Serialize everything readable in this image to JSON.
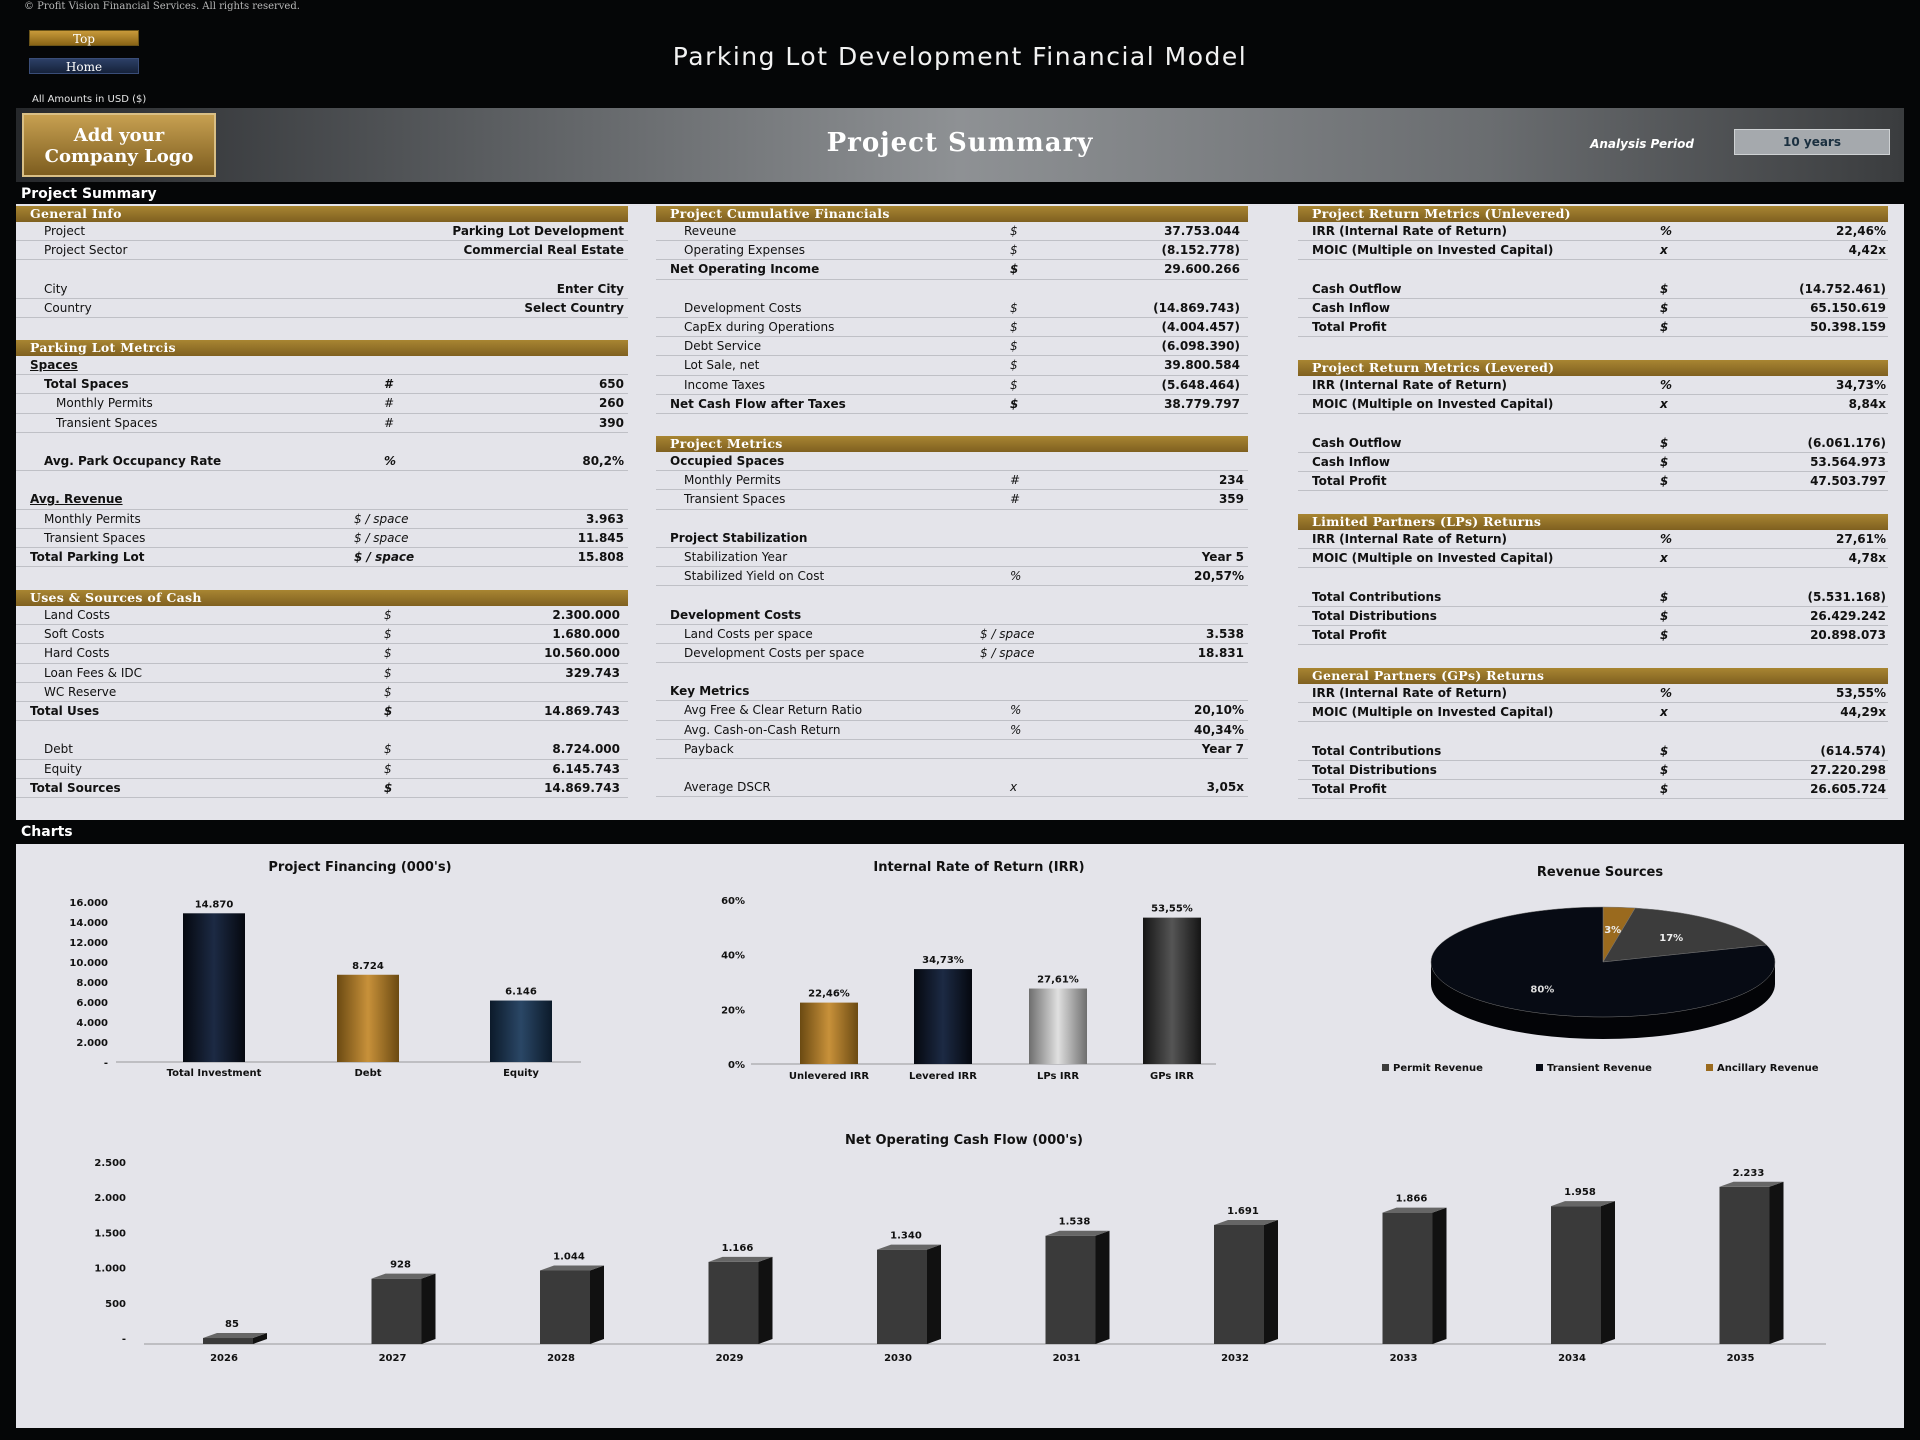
{
  "copyright": "© Profit Vision Financial Services. All rights reserved.",
  "nav": {
    "top": "Top",
    "home": "Home"
  },
  "title": "Parking Lot Development Financial Model",
  "amounts_label": "All Amounts in  USD ($)",
  "banner": {
    "logo_line1": "Add your",
    "logo_line2": "Company Logo",
    "title": "Project Summary",
    "analysis_label": "Analysis Period",
    "analysis_value": "10 years"
  },
  "sections": {
    "summary": "Project Summary",
    "charts": "Charts"
  },
  "panels": {
    "general": {
      "title": "General Info",
      "rows": [
        {
          "label": "Project",
          "value": "Parking Lot Development"
        },
        {
          "label": "Project Sector",
          "value": "Commercial Real Estate"
        },
        {
          "label": "",
          "value": ""
        },
        {
          "label": "City",
          "value": "Enter City"
        },
        {
          "label": "Country",
          "value": "Select Country"
        }
      ]
    },
    "parking": {
      "title": "Parking Lot Metrcis",
      "rows": [
        {
          "label": "Spaces",
          "unit": "",
          "value": ""
        },
        {
          "label": "Total Spaces",
          "unit": "#",
          "value": "650"
        },
        {
          "label": "Monthly Permits",
          "unit": "#",
          "value": "260"
        },
        {
          "label": "Transient Spaces",
          "unit": "#",
          "value": "390"
        },
        {
          "label": "",
          "unit": "",
          "value": ""
        },
        {
          "label": "Avg. Park Occupancy Rate",
          "unit": "%",
          "value": "80,2%"
        },
        {
          "label": "",
          "unit": "",
          "value": ""
        },
        {
          "label": "Avg. Revenue",
          "unit": "",
          "value": ""
        },
        {
          "label": "Monthly Permits",
          "unit": "$ / space",
          "value": "3.963"
        },
        {
          "label": "Transient Spaces",
          "unit": "$ / space",
          "value": "11.845"
        },
        {
          "label": "Total Parking Lot",
          "unit": "$ / space",
          "value": "15.808"
        }
      ]
    },
    "uses": {
      "title": "Uses & Sources of Cash",
      "rows": [
        {
          "label": "Land Costs",
          "unit": "$",
          "value": "2.300.000"
        },
        {
          "label": "Soft Costs",
          "unit": "$",
          "value": "1.680.000"
        },
        {
          "label": "Hard Costs",
          "unit": "$",
          "value": "10.560.000"
        },
        {
          "label": "Loan Fees & IDC",
          "unit": "$",
          "value": "329.743"
        },
        {
          "label": "WC Reserve",
          "unit": "$",
          "value": ""
        },
        {
          "label": "Total Uses",
          "unit": "$",
          "value": "14.869.743"
        },
        {
          "label": "",
          "unit": "",
          "value": ""
        },
        {
          "label": "Debt",
          "unit": "$",
          "value": "8.724.000"
        },
        {
          "label": "Equity",
          "unit": "$",
          "value": "6.145.743"
        },
        {
          "label": "Total Sources",
          "unit": "$",
          "value": "14.869.743"
        }
      ]
    },
    "cumulative": {
      "title": "Project Cumulative Financials",
      "rows": [
        {
          "label": "Reveune",
          "unit": "$",
          "value": "37.753.044"
        },
        {
          "label": "Operating Expenses",
          "unit": "$",
          "value": "(8.152.778)"
        },
        {
          "label": "Net Operating Income",
          "unit": "$",
          "value": "29.600.266"
        },
        {
          "label": "",
          "unit": "",
          "value": ""
        },
        {
          "label": "Development Costs",
          "unit": "$",
          "value": "(14.869.743)"
        },
        {
          "label": "CapEx during Operations",
          "unit": "$",
          "value": "(4.004.457)"
        },
        {
          "label": "Debt Service",
          "unit": "$",
          "value": "(6.098.390)"
        },
        {
          "label": "Lot Sale, net",
          "unit": "$",
          "value": "39.800.584"
        },
        {
          "label": "Income Taxes",
          "unit": "$",
          "value": "(5.648.464)"
        },
        {
          "label": "Net Cash Flow after Taxes",
          "unit": "$",
          "value": "38.779.797"
        }
      ]
    },
    "metrics": {
      "title": "Project Metrics",
      "rows": [
        {
          "label": "Occupied Spaces",
          "unit": "",
          "value": ""
        },
        {
          "label": "Monthly Permits",
          "unit": "#",
          "value": "234"
        },
        {
          "label": "Transient Spaces",
          "unit": "#",
          "value": "359"
        },
        {
          "label": "",
          "unit": "",
          "value": ""
        },
        {
          "label": "Project Stabilization",
          "unit": "",
          "value": ""
        },
        {
          "label": "Stabilization Year",
          "unit": "",
          "value": "Year 5"
        },
        {
          "label": "Stabilized Yield on Cost",
          "unit": "%",
          "value": "20,57%"
        },
        {
          "label": "",
          "unit": "",
          "value": ""
        },
        {
          "label": "Development Costs",
          "unit": "",
          "value": ""
        },
        {
          "label": "Land Costs per space",
          "unit": "$ / space",
          "value": "3.538"
        },
        {
          "label": "Development Costs per space",
          "unit": "$ / space",
          "value": "18.831"
        },
        {
          "label": "",
          "unit": "",
          "value": ""
        },
        {
          "label": "Key Metrics",
          "unit": "",
          "value": ""
        },
        {
          "label": "Avg Free & Clear Return Ratio",
          "unit": "%",
          "value": "20,10%"
        },
        {
          "label": "Avg. Cash-on-Cash Return",
          "unit": "%",
          "value": "40,34%"
        },
        {
          "label": "Payback",
          "unit": "",
          "value": "Year 7"
        },
        {
          "label": "",
          "unit": "",
          "value": ""
        },
        {
          "label": "Average DSCR",
          "unit": "x",
          "value": "3,05x"
        }
      ]
    },
    "unlevered": {
      "title": "Project Return Metrics (Unlevered)",
      "rows": [
        {
          "label": "IRR (Internal Rate of Return)",
          "unit": "%",
          "value": "22,46%"
        },
        {
          "label": "MOIC (Multiple on Invested Capital)",
          "unit": "x",
          "value": "4,42x"
        },
        {
          "label": "",
          "unit": "",
          "value": ""
        },
        {
          "label": "Cash Outflow",
          "unit": "$",
          "value": "(14.752.461)"
        },
        {
          "label": "Cash Inflow",
          "unit": "$",
          "value": "65.150.619"
        },
        {
          "label": "Total Profit",
          "unit": "$",
          "value": "50.398.159"
        }
      ]
    },
    "levered": {
      "title": "Project Return Metrics (Levered)",
      "rows": [
        {
          "label": "IRR (Internal Rate of Return)",
          "unit": "%",
          "value": "34,73%"
        },
        {
          "label": "MOIC (Multiple on Invested Capital)",
          "unit": "x",
          "value": "8,84x"
        },
        {
          "label": "",
          "unit": "",
          "value": ""
        },
        {
          "label": "Cash Outflow",
          "unit": "$",
          "value": "(6.061.176)"
        },
        {
          "label": "Cash Inflow",
          "unit": "$",
          "value": "53.564.973"
        },
        {
          "label": "Total Profit",
          "unit": "$",
          "value": "47.503.797"
        }
      ]
    },
    "lps": {
      "title": "Limited Partners (LPs) Returns",
      "rows": [
        {
          "label": "IRR (Internal Rate of Return)",
          "unit": "%",
          "value": "27,61%"
        },
        {
          "label": "MOIC (Multiple on Invested Capital)",
          "unit": "x",
          "value": "4,78x"
        },
        {
          "label": "",
          "unit": "",
          "value": ""
        },
        {
          "label": "Total Contributions",
          "unit": "$",
          "value": "(5.531.168)"
        },
        {
          "label": "Total Distributions",
          "unit": "$",
          "value": "26.429.242"
        },
        {
          "label": "Total Profit",
          "unit": "$",
          "value": "20.898.073"
        }
      ]
    },
    "gps": {
      "title": "General Partners (GPs) Returns",
      "rows": [
        {
          "label": "IRR (Internal Rate of Return)",
          "unit": "%",
          "value": "53,55%"
        },
        {
          "label": "MOIC (Multiple on Invested Capital)",
          "unit": "x",
          "value": "44,29x"
        },
        {
          "label": "",
          "unit": "",
          "value": ""
        },
        {
          "label": "Total Contributions",
          "unit": "$",
          "value": "(614.574)"
        },
        {
          "label": "Total Distributions",
          "unit": "$",
          "value": "27.220.298"
        },
        {
          "label": "Total Profit",
          "unit": "$",
          "value": "26.605.724"
        }
      ]
    }
  },
  "chart_data": [
    {
      "type": "bar",
      "title": "Project Financing (000's)",
      "categories": [
        "Total Investment",
        "Debt",
        "Equity"
      ],
      "values": [
        14870,
        8724,
        6146
      ],
      "labels": [
        "14.870",
        "8.724",
        "6.146"
      ],
      "yticks": [
        "-",
        "2.000",
        "4.000",
        "6.000",
        "8.000",
        "10.000",
        "12.000",
        "14.000",
        "16.000"
      ],
      "ylim": [
        0,
        16000
      ],
      "colors": [
        "#0b1220",
        "#9a6a1e",
        "#17304a"
      ]
    },
    {
      "type": "bar",
      "title": "Internal Rate of Return (IRR)",
      "categories": [
        "Unlevered IRR",
        "Levered IRR",
        "LPs IRR",
        "GPs IRR"
      ],
      "values": [
        22.46,
        34.73,
        27.61,
        53.55
      ],
      "labels": [
        "22,46%",
        "34,73%",
        "27,61%",
        "53,55%"
      ],
      "yticks": [
        "0%",
        "20%",
        "40%",
        "60%"
      ],
      "ylim": [
        0,
        60
      ],
      "colors": [
        "#9a6a1e",
        "#0b1220",
        "#9a9a9a",
        "#2a2a2a"
      ]
    },
    {
      "type": "pie",
      "title": "Revenue Sources",
      "categories": [
        "Permit Revenue",
        "Transient Revenue",
        "Ancillary Revenue"
      ],
      "values": [
        17,
        80,
        3
      ],
      "labels": [
        "17%",
        "80%",
        "3%"
      ],
      "colors": [
        "#3c3c3c",
        "#070b14",
        "#9a6a1e"
      ]
    },
    {
      "type": "bar",
      "title": "Net Operating Cash Flow (000's)",
      "categories": [
        "2026",
        "2027",
        "2028",
        "2029",
        "2030",
        "2031",
        "2032",
        "2033",
        "2034",
        "2035"
      ],
      "values": [
        85,
        928,
        1044,
        1166,
        1340,
        1538,
        1691,
        1866,
        1958,
        2233
      ],
      "labels": [
        "85",
        "928",
        "1.044",
        "1.166",
        "1.340",
        "1.538",
        "1.691",
        "1.866",
        "1.958",
        "2.233"
      ],
      "yticks": [
        "-",
        "500",
        "1.000",
        "1.500",
        "2.000",
        "2.500"
      ],
      "ylim": [
        0,
        2500
      ]
    }
  ]
}
